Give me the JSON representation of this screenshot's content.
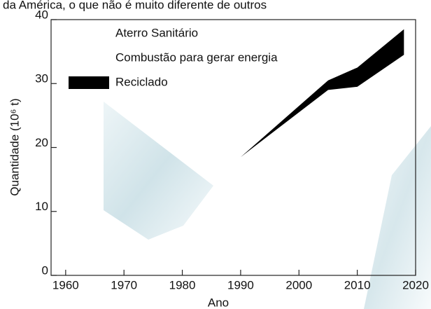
{
  "header_text": "da América, o que não é muito diferente de outros",
  "chart_data": {
    "type": "band",
    "xlabel": "Ano",
    "ylabel": "Quantidade (10⁶ t)",
    "legend_entries": [
      "Aterro Sanitário",
      "Combustão para gerar energia"
    ],
    "series": [
      {
        "name": "Reciclado",
        "color": "#000000",
        "x": [
          1990,
          2005,
          2010,
          2018
        ],
        "values": [
          18.5,
          30.5,
          32.5,
          38.5
        ],
        "base": [
          18.5,
          29,
          29.5,
          34.5
        ]
      }
    ],
    "xlim": [
      1957.5,
      2020
    ],
    "xticks": [
      1960,
      1970,
      1980,
      1990,
      2000,
      2010,
      2020
    ],
    "ylim": [
      0,
      40
    ],
    "yticks": [
      0,
      10,
      20,
      30,
      40
    ]
  }
}
